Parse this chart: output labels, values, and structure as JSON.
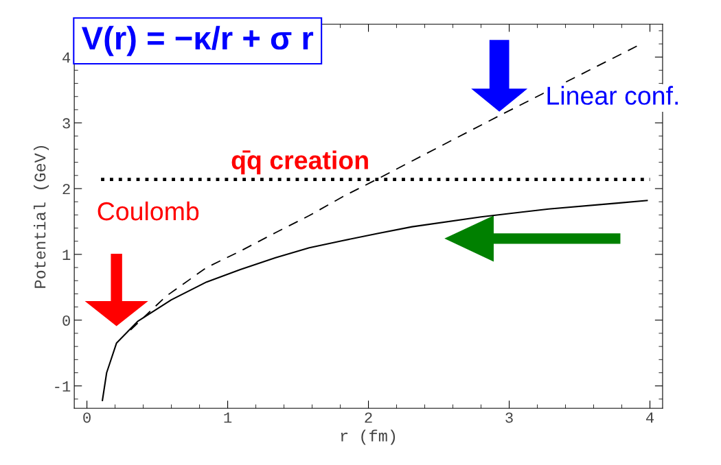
{
  "chart_data": {
    "type": "line",
    "title": "V(r) = −κ/r + σ r",
    "xlabel": "r (fm)",
    "ylabel": "Potential (GeV)",
    "xlim": [
      -0.09,
      4.09
    ],
    "ylim": [
      -1.34,
      4.5
    ],
    "xticks": [
      0,
      1,
      2,
      3,
      4
    ],
    "yticks": [
      -1,
      0,
      1,
      2,
      3,
      4
    ],
    "grid": false,
    "legend": false,
    "series": [
      {
        "color": "#000000",
        "line_style": "solid",
        "x": [
          0.11,
          0.14,
          0.21,
          0.36,
          0.6,
          0.85,
          1.09,
          1.34,
          1.58,
          1.82,
          2.07,
          2.31,
          2.8,
          3.28,
          3.77,
          3.98
        ],
        "values": [
          -1.22,
          -0.8,
          -0.35,
          -0.02,
          0.31,
          0.58,
          0.77,
          0.95,
          1.1,
          1.21,
          1.32,
          1.42,
          1.57,
          1.69,
          1.78,
          1.82
        ]
      },
      {
        "color": "#000000",
        "line_style": "dashed",
        "x": [
          0.31,
          0.56,
          0.85,
          1.09,
          1.34,
          1.58,
          1.82,
          2.05,
          2.31,
          2.94,
          3.92
        ],
        "values": [
          -0.15,
          0.36,
          0.8,
          1.05,
          1.33,
          1.59,
          1.88,
          2.13,
          2.42,
          3.12,
          4.18
        ]
      },
      {
        "color": "#000000",
        "line_style": "dotted",
        "x": [
          0.1,
          4
        ],
        "values": [
          2.14,
          2.14
        ]
      }
    ],
    "annotations": [
      "Linear conf.",
      "q̄q creation",
      "Coulomb"
    ]
  }
}
